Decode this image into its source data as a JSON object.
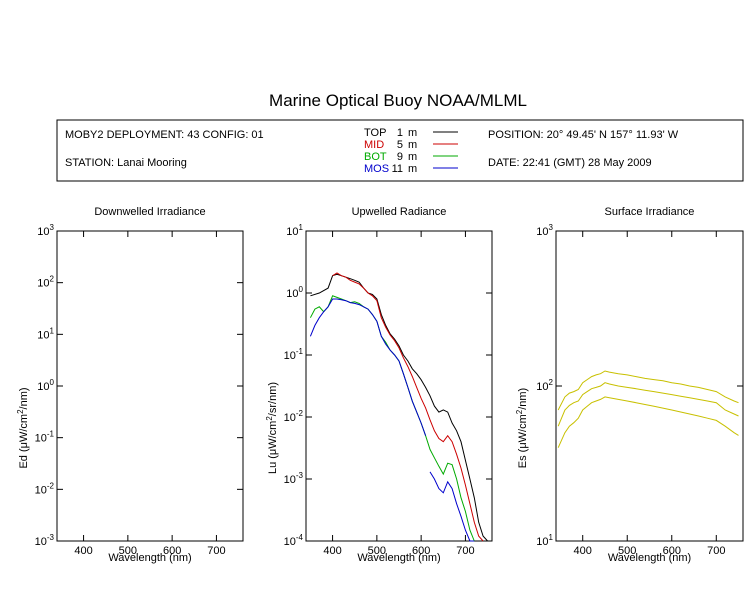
{
  "title": "Marine Optical Buoy NOAA/MLML",
  "info": {
    "deployment": "MOBY2 DEPLOYMENT: 43 CONFIG: 01",
    "station": "STATION: Lanai Mooring",
    "position": "POSITION: 20° 49.45' N   157° 11.93' W",
    "date": "DATE: 22:41 (GMT) 28 May 2009"
  },
  "legend": [
    {
      "name": "TOP",
      "depth": "1",
      "unit": "m",
      "color": "#000000"
    },
    {
      "name": "MID",
      "depth": "5",
      "unit": "m",
      "color": "#cc0000"
    },
    {
      "name": "BOT",
      "depth": "9",
      "unit": "m",
      "color": "#00aa00"
    },
    {
      "name": "MOS",
      "depth": "11",
      "unit": "m",
      "color": "#0000cc"
    }
  ],
  "colors": {
    "surface": "#c8c000"
  },
  "chart_data": [
    {
      "type": "line",
      "title": "Downwelled Irradiance",
      "xlabel": "Wavelength (nm)",
      "ylabel_main": "Ed",
      "ylabel_unit_pre": "(μW/cm",
      "ylabel_unit_post": "/nm)",
      "xlim": [
        340,
        760
      ],
      "ylim_exp": [
        -3,
        3
      ],
      "yscale": "log",
      "x_ticks": [
        "400",
        "500",
        "600",
        "700"
      ],
      "y_ticks": [
        "-3",
        "-2",
        "-1",
        "0",
        "1",
        "2",
        "3"
      ],
      "series": []
    },
    {
      "type": "line",
      "title": "Upwelled Radiance",
      "xlabel": "Wavelength (nm)",
      "ylabel_main": "Lu",
      "ylabel_unit_pre": "(μW/cm",
      "ylabel_unit_post": "/sr/nm)",
      "xlim": [
        340,
        760
      ],
      "ylim_exp": [
        -4,
        1
      ],
      "yscale": "log",
      "x_ticks": [
        "400",
        "500",
        "600",
        "700"
      ],
      "y_ticks": [
        "-4",
        "-3",
        "-2",
        "-1",
        "0",
        "1"
      ],
      "series": [
        {
          "name": "TOP",
          "color": "#000000",
          "x": [
            350,
            370,
            390,
            400,
            410,
            420,
            430,
            440,
            450,
            460,
            470,
            480,
            490,
            500,
            510,
            520,
            530,
            540,
            550,
            560,
            570,
            580,
            590,
            600,
            610,
            620,
            630,
            640,
            650,
            660,
            670,
            680,
            690,
            700,
            710,
            720,
            730,
            740,
            750
          ],
          "y": [
            0.9,
            1.0,
            1.2,
            1.9,
            2.0,
            1.9,
            1.8,
            1.7,
            1.6,
            1.5,
            1.2,
            1.0,
            0.95,
            0.8,
            0.45,
            0.3,
            0.22,
            0.18,
            0.14,
            0.1,
            0.08,
            0.06,
            0.05,
            0.04,
            0.03,
            0.022,
            0.015,
            0.012,
            0.013,
            0.012,
            0.008,
            0.006,
            0.004,
            0.002,
            0.001,
            0.0005,
            0.0002,
            0.00012,
            0.0001
          ]
        },
        {
          "name": "MID",
          "color": "#cc0000",
          "x": [
            400,
            410,
            420,
            430,
            440,
            450,
            460,
            470,
            480,
            490,
            500,
            510,
            520,
            530,
            540,
            550,
            560,
            570,
            580,
            590,
            600,
            610,
            620,
            630,
            640,
            650,
            660,
            670,
            680,
            690,
            700,
            710,
            720,
            730,
            740
          ],
          "y": [
            1.9,
            2.1,
            1.9,
            1.8,
            1.6,
            1.5,
            1.4,
            1.2,
            1.0,
            0.9,
            0.75,
            0.4,
            0.28,
            0.21,
            0.17,
            0.13,
            0.09,
            0.065,
            0.045,
            0.03,
            0.02,
            0.014,
            0.009,
            0.006,
            0.0045,
            0.004,
            0.005,
            0.004,
            0.0025,
            0.0015,
            0.0008,
            0.0004,
            0.0002,
            0.00012,
            0.0001
          ]
        },
        {
          "name": "BOT",
          "color": "#00aa00",
          "x": [
            350,
            360,
            370,
            380,
            390,
            400,
            410,
            420,
            430,
            440,
            450,
            460,
            470,
            480,
            490,
            500,
            510,
            520,
            530,
            540,
            550,
            560,
            570,
            580,
            590,
            600,
            610,
            620,
            630,
            640,
            650,
            660,
            670,
            680,
            690,
            700,
            710,
            720
          ],
          "y": [
            0.4,
            0.55,
            0.6,
            0.5,
            0.6,
            0.9,
            0.85,
            0.8,
            0.75,
            0.7,
            0.72,
            0.68,
            0.6,
            0.55,
            0.45,
            0.35,
            0.2,
            0.16,
            0.12,
            0.1,
            0.08,
            0.05,
            0.03,
            0.018,
            0.012,
            0.008,
            0.005,
            0.003,
            0.0022,
            0.0016,
            0.0012,
            0.0018,
            0.0017,
            0.001,
            0.0005,
            0.0003,
            0.00015,
            0.0001
          ]
        },
        {
          "name": "MOS",
          "color": "#0000cc",
          "x": [
            350,
            360,
            370,
            380,
            390,
            400,
            410,
            420,
            430,
            440,
            450,
            460,
            470,
            480,
            490,
            500,
            510,
            520,
            530,
            540,
            550,
            560,
            570,
            580,
            590,
            600,
            610
          ],
          "y": [
            0.2,
            0.3,
            0.4,
            0.5,
            0.6,
            0.8,
            0.8,
            0.78,
            0.75,
            0.7,
            0.68,
            0.65,
            0.6,
            0.55,
            0.45,
            0.35,
            0.2,
            0.15,
            0.12,
            0.1,
            0.08,
            0.05,
            0.03,
            0.018,
            0.012,
            0.008,
            0.005
          ]
        },
        {
          "name": "MOS",
          "color": "#0000cc",
          "x": [
            620,
            630,
            640,
            650,
            660,
            670,
            680,
            690,
            700,
            710,
            720
          ],
          "y": [
            0.0013,
            0.001,
            0.0007,
            0.0006,
            0.0009,
            0.0007,
            0.0004,
            0.00025,
            0.00015,
            0.0001,
            0.0001
          ]
        }
      ]
    },
    {
      "type": "line",
      "title": "Surface Irradiance",
      "xlabel": "Wavelength (nm)",
      "ylabel_main": "Es",
      "ylabel_unit_pre": "(μW/cm",
      "ylabel_unit_post": "/nm)",
      "xlim": [
        340,
        760
      ],
      "ylim_exp": [
        1,
        3
      ],
      "yscale": "log",
      "x_ticks": [
        "400",
        "500",
        "600",
        "700"
      ],
      "y_ticks": [
        "1",
        "2",
        "3"
      ],
      "series": [
        {
          "name": "",
          "color": "#c8c000",
          "x": [
            345,
            360,
            370,
            380,
            390,
            400,
            410,
            420,
            430,
            440,
            450,
            460,
            480,
            500,
            520,
            540,
            560,
            580,
            600,
            620,
            640,
            660,
            680,
            700,
            720,
            740,
            750
          ],
          "y": [
            70,
            85,
            90,
            92,
            95,
            105,
            110,
            115,
            118,
            120,
            125,
            123,
            120,
            118,
            115,
            112,
            110,
            108,
            105,
            103,
            100,
            98,
            95,
            92,
            85,
            80,
            78
          ]
        },
        {
          "name": "",
          "color": "#c8c000",
          "x": [
            345,
            360,
            370,
            380,
            390,
            400,
            410,
            420,
            430,
            440,
            450,
            460,
            480,
            500,
            520,
            540,
            560,
            580,
            600,
            620,
            640,
            660,
            680,
            700,
            720,
            740,
            750
          ],
          "y": [
            55,
            70,
            75,
            78,
            80,
            88,
            92,
            96,
            98,
            100,
            105,
            103,
            100,
            98,
            96,
            94,
            92,
            90,
            88,
            86,
            84,
            82,
            80,
            78,
            70,
            66,
            64
          ]
        },
        {
          "name": "",
          "color": "#c8c000",
          "x": [
            345,
            360,
            370,
            380,
            390,
            400,
            410,
            420,
            430,
            440,
            450,
            460,
            480,
            500,
            520,
            540,
            560,
            580,
            600,
            620,
            640,
            660,
            680,
            700,
            720,
            740,
            750
          ],
          "y": [
            40,
            50,
            55,
            58,
            62,
            70,
            74,
            78,
            80,
            82,
            85,
            84,
            82,
            80,
            78,
            76,
            74,
            72,
            70,
            68,
            66,
            64,
            62,
            60,
            55,
            50,
            48
          ]
        }
      ]
    }
  ]
}
